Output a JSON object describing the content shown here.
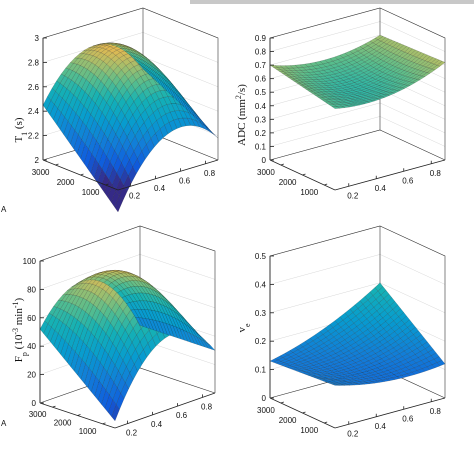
{
  "chart_data": [
    {
      "type": "surface",
      "title": "",
      "ylabel_main": "T",
      "ylabel_sub": "1",
      "ylabel_rest": " (s)",
      "zlim": [
        2,
        3
      ],
      "z_ticks": [
        "2",
        "2.2",
        "2.4",
        "2.6",
        "2.8",
        "3"
      ],
      "x_ticks": [
        "0.2",
        "0.4",
        "0.6",
        "0.8"
      ],
      "y_ticks": [
        "1000",
        "2000",
        "3000"
      ],
      "xlim": [
        0.1,
        0.9
      ],
      "ylim": [
        500,
        3500
      ],
      "corner_values": {
        "x0_y0": 1.82,
        "x1_y0": 2.18,
        "x0_y1": 2.45,
        "x1_y1": 2.5
      },
      "peak_value": 2.8
    },
    {
      "type": "surface",
      "title": "",
      "ylabel_main": "ADC (mm",
      "ylabel_sup": "2",
      "ylabel_rest": "/s)",
      "zlim": [
        0,
        0.9
      ],
      "z_ticks": [
        "0",
        "0.1",
        "0.2",
        "0.3",
        "0.4",
        "0.5",
        "0.6",
        "0.7",
        "0.8",
        "0.9"
      ],
      "x_ticks": [
        "0.2",
        "0.4",
        "0.6",
        "0.8"
      ],
      "y_ticks": [
        "1000",
        "2000",
        "3000"
      ],
      "xlim": [
        0.1,
        0.9
      ],
      "ylim": [
        500,
        3500
      ],
      "corner_values": {
        "x0_y0": 0.6,
        "x1_y0": 0.72,
        "x0_y1": 0.7,
        "x1_y1": 0.7
      },
      "peak_value": 0.56
    },
    {
      "type": "surface",
      "title": "",
      "ylabel_main": "F",
      "ylabel_sub": "p",
      "ylabel_rest": " (10",
      "ylabel_sup": "-3",
      "ylabel_rest2": " min",
      "ylabel_sup2": "-1",
      "ylabel_end": ")",
      "zlim": [
        0,
        100
      ],
      "z_ticks": [
        "0",
        "20",
        "40",
        "60",
        "80",
        "100"
      ],
      "x_ticks": [
        "0.2",
        "0.4",
        "0.6",
        "0.8"
      ],
      "y_ticks": [
        "1000",
        "2000",
        "3000"
      ],
      "xlim": [
        0.1,
        0.9
      ],
      "ylim": [
        500,
        3500
      ],
      "corner_values": {
        "x0_y0": 5,
        "x1_y0": 30,
        "x0_y1": 52,
        "x1_y1": 30
      },
      "peak_value": 85
    },
    {
      "type": "surface",
      "title": "",
      "ylabel_main": "v",
      "ylabel_sub": "e",
      "ylabel_rest": "",
      "zlim": [
        0,
        0.5
      ],
      "z_ticks": [
        "0",
        "0.1",
        "0.2",
        "0.3",
        "0.4",
        "0.5"
      ],
      "x_ticks": [
        "0.2",
        "0.4",
        "0.6",
        "0.8"
      ],
      "y_ticks": [
        "1000",
        "2000",
        "3000"
      ],
      "xlim": [
        0.1,
        0.9
      ],
      "ylim": [
        500,
        3500
      ],
      "corner_values": {
        "x0_y0": 0.15,
        "x1_y0": 0.12,
        "x0_y1": 0.13,
        "x1_y1": 0.3
      },
      "peak_value": 0.14
    }
  ],
  "panel_markers": [
    "A",
    "A"
  ]
}
